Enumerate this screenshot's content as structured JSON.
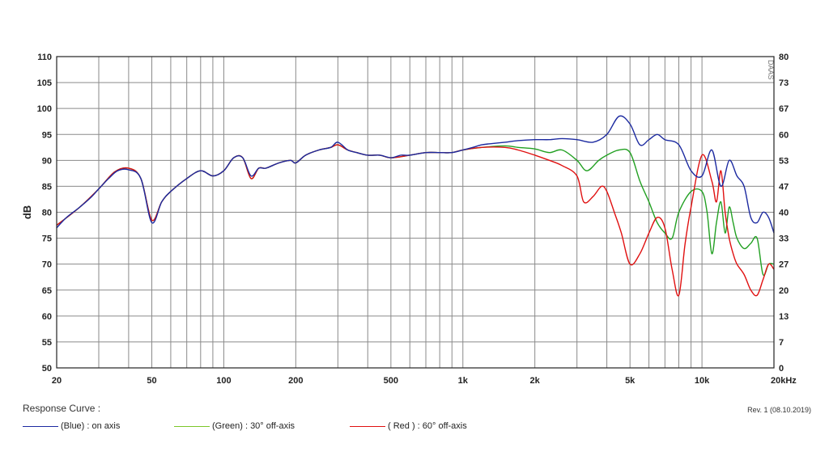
{
  "chart_data": {
    "type": "line",
    "title": "",
    "xlabel": "",
    "ylabel": "dB",
    "x_scale": "log",
    "xlim": [
      20,
      20000
    ],
    "ylim": [
      50,
      110
    ],
    "y2lim": [
      0,
      80
    ],
    "x_ticks": [
      {
        "value": 20,
        "label": "20"
      },
      {
        "value": 50,
        "label": "50"
      },
      {
        "value": 100,
        "label": "100"
      },
      {
        "value": 200,
        "label": "200"
      },
      {
        "value": 500,
        "label": "500"
      },
      {
        "value": 1000,
        "label": "1k"
      },
      {
        "value": 2000,
        "label": "2k"
      },
      {
        "value": 5000,
        "label": "5k"
      },
      {
        "value": 10000,
        "label": "10k"
      },
      {
        "value": 20000,
        "label": "20kHz"
      }
    ],
    "y_ticks": [
      "110",
      "105",
      "100",
      "95",
      "90",
      "85",
      "80",
      "75",
      "70",
      "65",
      "60",
      "55",
      "50"
    ],
    "y2_ticks": [
      "80",
      "73",
      "67",
      "60",
      "53",
      "47",
      "40",
      "33",
      "27",
      "20",
      "13",
      "7",
      "0"
    ],
    "grid": true,
    "series": [
      {
        "name": "(Blue)  : on axis",
        "color": "#1c2aa0",
        "x": [
          20,
          22,
          25,
          28,
          30,
          33,
          36,
          40,
          45,
          50,
          55,
          60,
          70,
          80,
          90,
          100,
          110,
          120,
          130,
          140,
          150,
          170,
          190,
          200,
          220,
          250,
          280,
          300,
          330,
          360,
          400,
          450,
          500,
          550,
          600,
          700,
          800,
          900,
          1000,
          1100,
          1200,
          1300,
          1500,
          1700,
          2000,
          2300,
          2600,
          3000,
          3500,
          4000,
          4500,
          5000,
          5500,
          6000,
          6500,
          7000,
          8000,
          9000,
          10000,
          11000,
          12000,
          13000,
          14000,
          15000,
          16000,
          17000,
          18000,
          19000,
          20000
        ],
        "values": [
          77,
          79,
          81,
          83,
          84.5,
          86.5,
          88,
          88.2,
          86.5,
          78,
          82,
          84,
          86.5,
          88,
          87,
          88,
          90.5,
          90.5,
          87,
          88.5,
          88.5,
          89.5,
          90,
          89.5,
          91,
          92,
          92.5,
          93.5,
          92,
          91.5,
          91,
          91,
          90.5,
          91,
          91,
          91.5,
          91.5,
          91.5,
          92,
          92.5,
          93,
          93.2,
          93.5,
          93.8,
          94,
          94,
          94.2,
          94,
          93.5,
          95,
          98.5,
          97,
          93,
          94,
          95,
          94,
          93,
          88,
          87,
          92,
          85,
          90,
          87,
          85,
          79,
          78,
          80,
          79,
          76
        ]
      },
      {
        "name": "(Green) : 30° off-axis",
        "color": "#22a022",
        "x": [
          20,
          25,
          30,
          35,
          40,
          45,
          50,
          55,
          60,
          70,
          80,
          90,
          100,
          110,
          120,
          130,
          140,
          150,
          170,
          190,
          200,
          220,
          250,
          280,
          300,
          330,
          360,
          400,
          450,
          500,
          600,
          700,
          800,
          900,
          1000,
          1200,
          1500,
          1700,
          2000,
          2300,
          2600,
          3000,
          3300,
          3700,
          4000,
          4500,
          5000,
          5500,
          6000,
          6500,
          7000,
          7500,
          8000,
          9000,
          10000,
          10500,
          11000,
          11500,
          12000,
          12500,
          13000,
          13500,
          14000,
          15000,
          16000,
          17000,
          18000,
          19000,
          20000
        ],
        "values": [
          77.5,
          81,
          84.5,
          87.8,
          88.5,
          86.5,
          78.5,
          82,
          84,
          86.5,
          88,
          87,
          88,
          90.5,
          90.5,
          86.5,
          88.5,
          88.5,
          89.5,
          90,
          89.5,
          91,
          92,
          92.5,
          93,
          92,
          91.5,
          91,
          91,
          90.5,
          91,
          91.5,
          91.5,
          91.5,
          92,
          92.5,
          92.8,
          92.5,
          92.2,
          91.5,
          92,
          90,
          88,
          90,
          91,
          92,
          91.5,
          86,
          82,
          78,
          76,
          75,
          80,
          84,
          84,
          80,
          72,
          78,
          82,
          76,
          81,
          78,
          75,
          73,
          74,
          75,
          68,
          70,
          70
        ]
      },
      {
        "name": "( Red ) : 60° off-axis",
        "color": "#e01010",
        "x": [
          20,
          25,
          30,
          35,
          40,
          45,
          50,
          55,
          60,
          70,
          80,
          90,
          100,
          110,
          120,
          130,
          140,
          150,
          170,
          190,
          200,
          220,
          250,
          280,
          300,
          330,
          360,
          400,
          450,
          500,
          600,
          700,
          800,
          900,
          1000,
          1200,
          1500,
          1700,
          2000,
          2300,
          2600,
          3000,
          3200,
          3500,
          3800,
          4000,
          4300,
          4600,
          5000,
          5500,
          6000,
          6500,
          7000,
          7500,
          8000,
          8500,
          9000,
          10000,
          11000,
          11500,
          12000,
          12500,
          13000,
          13500,
          14000,
          15000,
          16000,
          17000,
          18000,
          19000,
          20000
        ],
        "values": [
          77.5,
          81,
          84.5,
          87.8,
          88.5,
          86.5,
          78.5,
          82,
          84,
          86.5,
          88,
          87,
          88,
          90.5,
          90.5,
          86.5,
          88.5,
          88.5,
          89.5,
          90,
          89.5,
          91,
          92,
          92.5,
          93,
          92,
          91.5,
          91,
          91,
          90.5,
          91,
          91.5,
          91.5,
          91.5,
          92,
          92.5,
          92.5,
          92,
          91,
          90,
          89,
          87,
          82,
          83,
          85,
          84,
          80,
          76,
          70,
          72,
          76,
          79,
          77,
          69,
          64,
          74,
          81,
          91,
          86,
          82,
          88,
          80,
          75,
          72,
          70,
          68,
          65,
          64,
          67,
          70,
          69
        ]
      }
    ]
  },
  "footer": {
    "legend_title": "Response Curve :",
    "revision": "Rev. 1 (08.10.2019)",
    "watermark": "DAAS",
    "legend": [
      {
        "label": "(Blue)  : on axis",
        "color": "#1c2aa0"
      },
      {
        "label": "(Green) : 30° off-axis",
        "color": "#22a022"
      },
      {
        "label": "( Red ) : 60° off-axis",
        "color": "#e01010"
      }
    ]
  }
}
